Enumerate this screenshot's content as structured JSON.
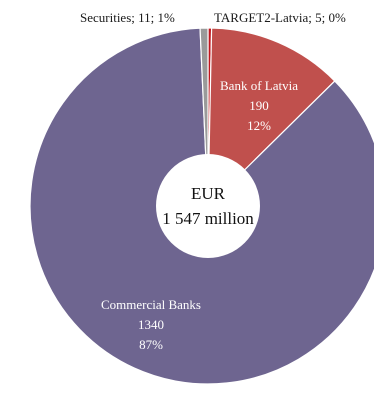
{
  "chart_data": {
    "type": "pie",
    "title": "",
    "unit_label": "EUR",
    "total_label": "1 547 million",
    "total": 1547,
    "slices": [
      {
        "name": "TARGET2-Latvia",
        "value": 5,
        "pct": "0%",
        "label": "TARGET2-Latvia; 5; 0%",
        "color": "#c0141c"
      },
      {
        "name": "Bank of Latvia",
        "value": 190,
        "pct": "12%",
        "color": "#c0504d"
      },
      {
        "name": "Commercial Banks",
        "value": 1340,
        "pct": "87%",
        "color": "#6e6590"
      },
      {
        "name": "Securities",
        "value": 11,
        "pct": "1%",
        "label": "Securities; 11; 1%",
        "color": "#9a9a9a"
      }
    ],
    "legend": "none"
  }
}
